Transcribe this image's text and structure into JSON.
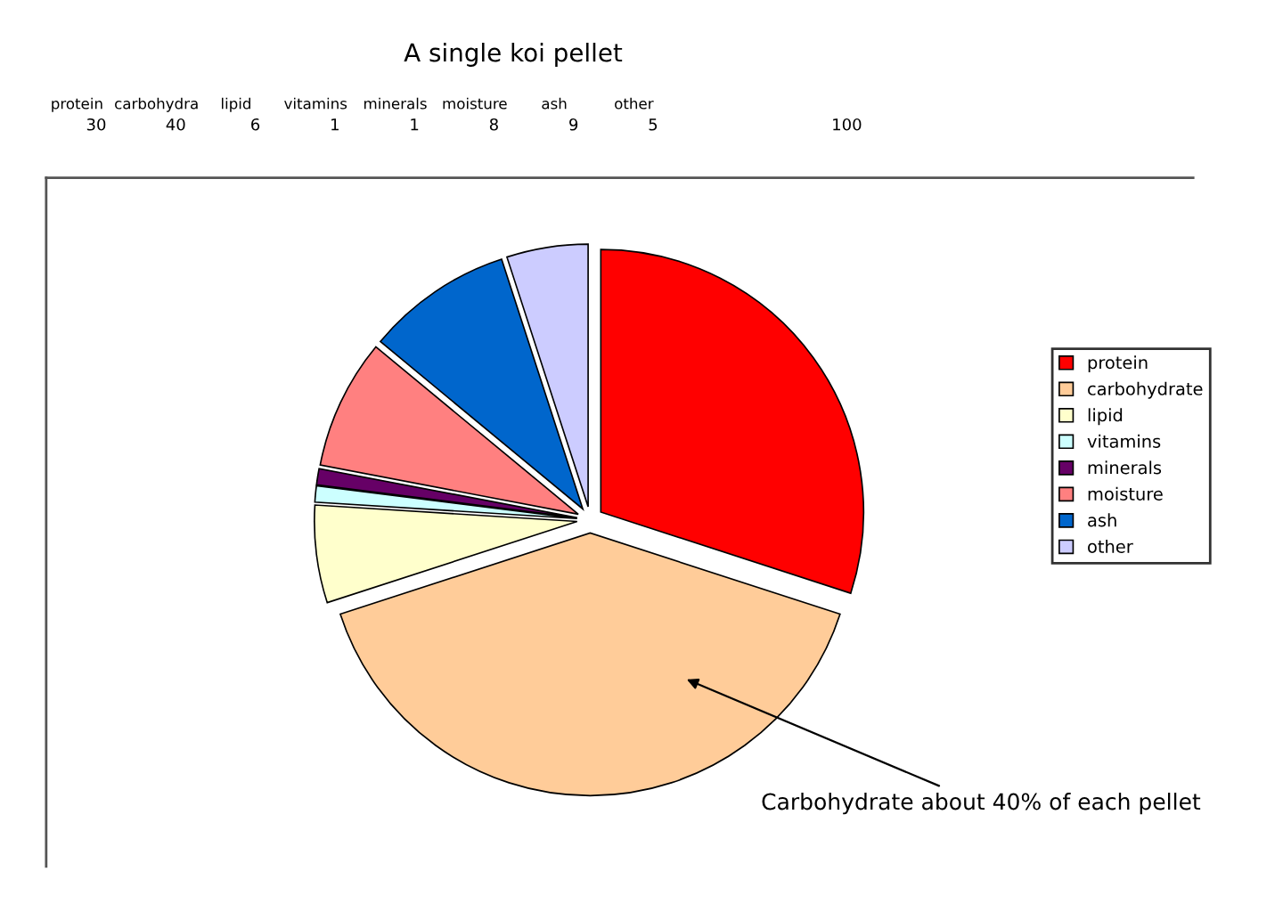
{
  "chart_data": {
    "type": "pie",
    "title": "A single koi pellet",
    "categories": [
      "protein",
      "carbohydrate",
      "lipid",
      "vitamins",
      "minerals",
      "moisture",
      "ash",
      "other"
    ],
    "values": [
      30,
      40,
      6,
      1,
      1,
      8,
      9,
      5
    ],
    "colors": [
      "#ff0000",
      "#ffcc99",
      "#ffffcc",
      "#ccffff",
      "#660066",
      "#ff8080",
      "#0066cc",
      "#ccccff"
    ],
    "legend": "right",
    "annotations": [
      "protein",
      "carbohydra",
      "lipid",
      "vitamins",
      "minerals",
      "moisture",
      "ash",
      "other",
      "30",
      "40",
      "6",
      "1",
      "1",
      "8",
      "9",
      "5",
      "100",
      "Carbohydrate about 40% of each pellet"
    ]
  }
}
